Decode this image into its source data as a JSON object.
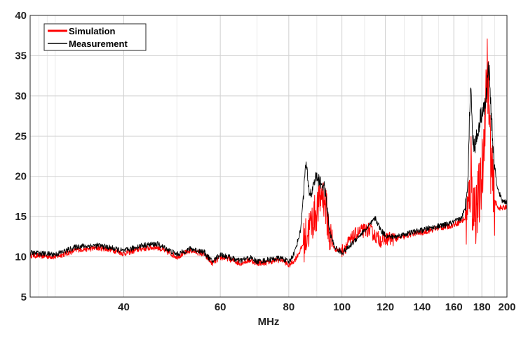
{
  "chart_data": {
    "type": "line",
    "title": "",
    "xlabel": "MHz",
    "ylabel": "",
    "x_scale": "log",
    "xlim": [
      27,
      200
    ],
    "ylim": [
      5,
      40
    ],
    "x_ticks": [
      40,
      60,
      80,
      100,
      120,
      140,
      160,
      180,
      200
    ],
    "y_ticks": [
      5,
      10,
      15,
      20,
      25,
      30,
      35,
      40
    ],
    "grid": true,
    "legend_position": "top-left",
    "series": [
      {
        "name": "Simulation",
        "color": "#ff0000",
        "x": [
          27,
          30,
          33,
          36,
          38,
          40,
          43,
          46,
          50,
          53,
          56,
          58,
          60,
          62,
          65,
          68,
          70,
          73,
          76,
          78,
          80,
          82,
          84,
          86,
          88,
          90,
          91,
          92,
          93,
          94,
          95,
          97,
          100,
          103,
          106,
          109,
          112,
          115,
          118,
          121,
          125,
          130,
          135,
          140,
          145,
          150,
          155,
          160,
          165,
          168,
          170,
          171,
          172,
          173,
          175,
          177,
          179,
          181,
          182,
          183,
          184,
          185,
          186,
          187,
          189,
          192,
          196,
          200
        ],
        "y": [
          10.2,
          10.0,
          10.9,
          11.1,
          10.9,
          10.4,
          11.0,
          11.2,
          10.0,
          10.8,
          10.3,
          9.2,
          9.9,
          9.8,
          9.2,
          9.6,
          9.2,
          9.3,
          9.6,
          9.6,
          8.9,
          9.6,
          10.8,
          12.5,
          14.2,
          15.8,
          16.8,
          18.0,
          17.2,
          15.0,
          12.5,
          11.0,
          10.8,
          11.8,
          12.8,
          13.2,
          13.4,
          12.6,
          12.0,
          12.3,
          12.2,
          12.5,
          12.9,
          13.0,
          13.3,
          13.6,
          13.7,
          14.0,
          14.4,
          14.8,
          15.3,
          17.5,
          21.5,
          16.8,
          15.8,
          16.8,
          18.2,
          22.0,
          26.5,
          30.5,
          33.5,
          31.0,
          26.0,
          21.5,
          17.5,
          16.2,
          16.0,
          16.3
        ]
      },
      {
        "name": "Measurement",
        "color": "#000000",
        "x": [
          27,
          30,
          33,
          36,
          38,
          40,
          43,
          46,
          50,
          53,
          56,
          58,
          60,
          62,
          65,
          68,
          70,
          73,
          76,
          78,
          80,
          82,
          84,
          85,
          86,
          87,
          88,
          89,
          90,
          91,
          92,
          93,
          94,
          95,
          97,
          100,
          103,
          106,
          109,
          112,
          115,
          118,
          121,
          125,
          130,
          135,
          140,
          145,
          150,
          155,
          160,
          165,
          168,
          170,
          171,
          172,
          173,
          175,
          177,
          179,
          181,
          182,
          183,
          184,
          185,
          186,
          187,
          189,
          192,
          196,
          200
        ],
        "y": [
          10.5,
          10.3,
          11.3,
          11.4,
          11.1,
          10.7,
          11.4,
          11.6,
          10.3,
          11.0,
          10.6,
          9.4,
          10.3,
          10.0,
          9.5,
          9.9,
          9.4,
          9.6,
          9.8,
          9.8,
          9.3,
          10.6,
          13.2,
          17.5,
          21.8,
          18.2,
          17.8,
          19.5,
          20.0,
          19.3,
          19.0,
          18.5,
          16.0,
          13.0,
          11.2,
          10.5,
          11.2,
          12.2,
          13.0,
          13.8,
          14.8,
          13.2,
          12.5,
          12.5,
          12.8,
          13.1,
          13.3,
          13.6,
          13.8,
          14.0,
          14.3,
          14.8,
          16.0,
          21.0,
          28.0,
          32.0,
          24.5,
          24.0,
          25.5,
          27.5,
          28.5,
          28.5,
          29.0,
          31.5,
          33.6,
          32.5,
          28.5,
          22.5,
          18.5,
          17.0,
          16.8
        ]
      }
    ]
  }
}
